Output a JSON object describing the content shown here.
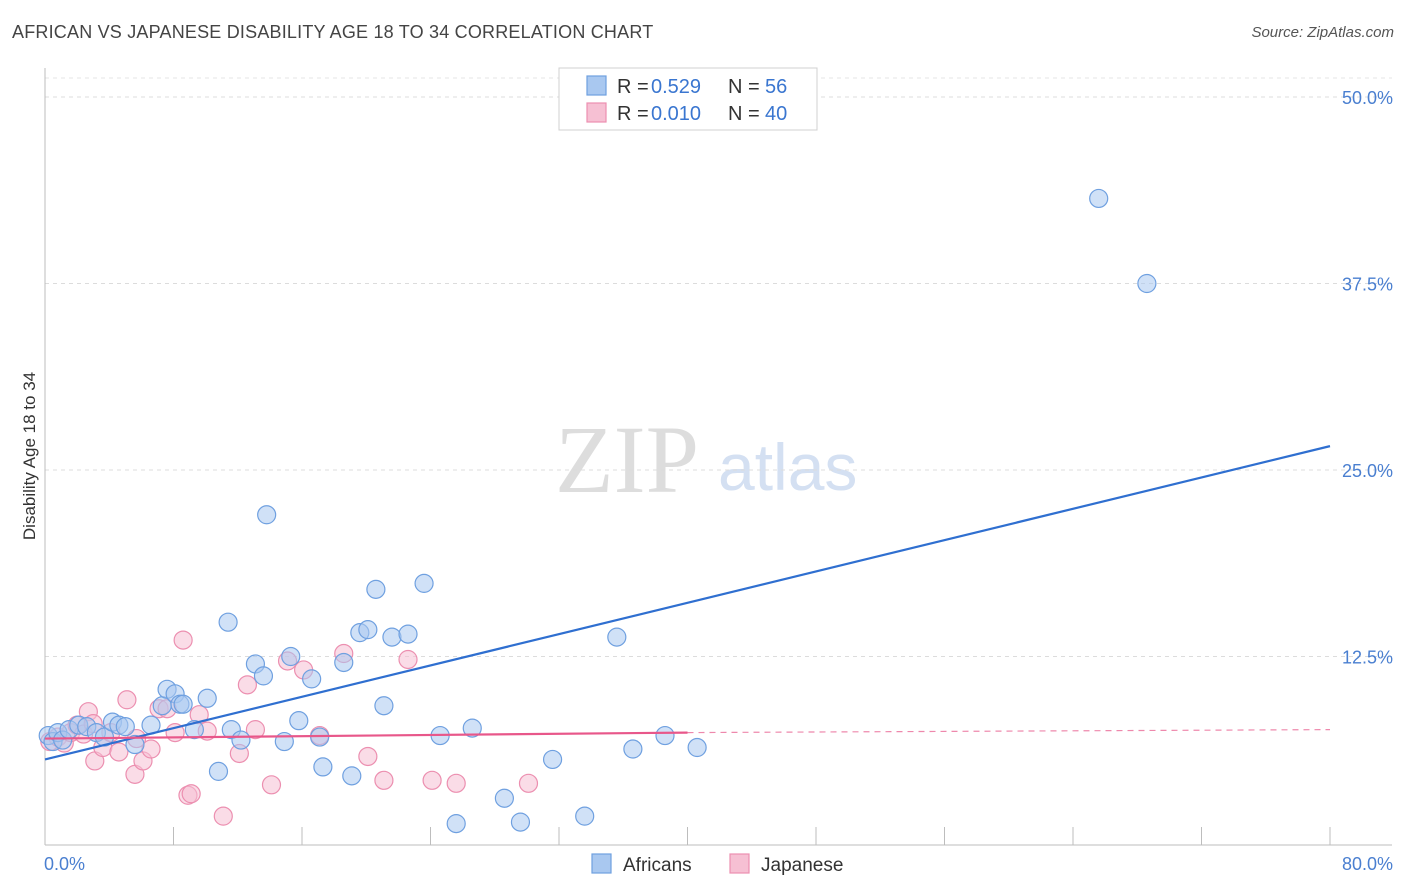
{
  "title": "AFRICAN VS JAPANESE DISABILITY AGE 18 TO 34 CORRELATION CHART",
  "source": "Source: ZipAtlas.com",
  "watermark": {
    "zip": "ZIP",
    "atlas": "atlas"
  },
  "colors": {
    "africans": "#6fa0e0",
    "africans_fill": "#a9c8f0",
    "africans_line": "#2f6fd0",
    "japanese": "#ec8fb0",
    "japanese_fill": "#f6c0d3",
    "japanese_line": "#e8578a",
    "tick_text": "#4a7fd0"
  },
  "legend": {
    "rows": [
      {
        "r_label": "R =",
        "r_value": "0.529",
        "n_label": "N =",
        "n_value": "56"
      },
      {
        "r_label": "R =",
        "r_value": "0.010",
        "n_label": "N =",
        "n_value": "40"
      }
    ]
  },
  "bottom_legend": [
    "Africans",
    "Japanese"
  ],
  "chart_data": {
    "type": "scatter",
    "xlabel": "",
    "ylabel": "Disability Age 18 to 34",
    "xlim": [
      0,
      80
    ],
    "ylim": [
      0,
      51
    ],
    "x_tick_labels": [
      "0.0%",
      "80.0%"
    ],
    "y_ticks": [
      12.5,
      25.0,
      37.5,
      50.0
    ],
    "y_tick_labels": [
      "12.5%",
      "25.0%",
      "37.5%",
      "50.0%"
    ],
    "grid": true,
    "series": [
      {
        "name": "Africans",
        "trend": {
          "x": [
            0,
            80
          ],
          "y": [
            5.6,
            26.6
          ]
        },
        "points": [
          [
            0.2,
            7.2
          ],
          [
            0.5,
            6.8
          ],
          [
            0.8,
            7.4
          ],
          [
            1.1,
            6.9
          ],
          [
            1.5,
            7.6
          ],
          [
            2.1,
            7.9
          ],
          [
            2.6,
            7.8
          ],
          [
            3.2,
            7.4
          ],
          [
            3.7,
            7.1
          ],
          [
            4.2,
            8.1
          ],
          [
            4.6,
            7.9
          ],
          [
            5.0,
            7.8
          ],
          [
            5.6,
            6.6
          ],
          [
            6.6,
            7.9
          ],
          [
            7.3,
            9.2
          ],
          [
            7.6,
            10.3
          ],
          [
            8.1,
            10.0
          ],
          [
            8.4,
            9.3
          ],
          [
            8.6,
            9.3
          ],
          [
            9.3,
            7.6
          ],
          [
            10.1,
            9.7
          ],
          [
            10.8,
            4.8
          ],
          [
            11.4,
            14.8
          ],
          [
            11.6,
            7.6
          ],
          [
            12.2,
            6.9
          ],
          [
            13.1,
            12.0
          ],
          [
            13.6,
            11.2
          ],
          [
            13.8,
            22.0
          ],
          [
            14.9,
            6.8
          ],
          [
            15.3,
            12.5
          ],
          [
            15.8,
            8.2
          ],
          [
            16.6,
            11.0
          ],
          [
            17.1,
            7.1
          ],
          [
            17.3,
            5.1
          ],
          [
            18.6,
            12.1
          ],
          [
            19.1,
            4.5
          ],
          [
            19.6,
            14.1
          ],
          [
            20.1,
            14.3
          ],
          [
            20.6,
            17.0
          ],
          [
            21.1,
            9.2
          ],
          [
            21.6,
            13.8
          ],
          [
            22.6,
            14.0
          ],
          [
            23.6,
            17.4
          ],
          [
            24.6,
            7.2
          ],
          [
            25.6,
            1.3
          ],
          [
            26.6,
            7.7
          ],
          [
            28.6,
            3.0
          ],
          [
            29.6,
            1.4
          ],
          [
            31.6,
            5.6
          ],
          [
            33.6,
            1.8
          ],
          [
            35.6,
            13.8
          ],
          [
            36.6,
            6.3
          ],
          [
            38.6,
            7.2
          ],
          [
            40.6,
            6.4
          ],
          [
            65.6,
            43.2
          ],
          [
            68.6,
            37.5
          ]
        ]
      },
      {
        "name": "Japanese",
        "trend": {
          "x": [
            0,
            40
          ],
          "y": [
            7.0,
            7.4
          ]
        },
        "trend_ext": {
          "x": [
            40,
            80
          ],
          "y": [
            7.4,
            7.6
          ]
        },
        "points": [
          [
            0.3,
            6.8
          ],
          [
            0.8,
            7.1
          ],
          [
            1.2,
            6.7
          ],
          [
            1.6,
            7.4
          ],
          [
            2.0,
            7.9
          ],
          [
            2.4,
            7.3
          ],
          [
            2.7,
            8.8
          ],
          [
            3.0,
            8.0
          ],
          [
            3.1,
            5.5
          ],
          [
            3.6,
            6.4
          ],
          [
            4.1,
            7.4
          ],
          [
            4.6,
            6.1
          ],
          [
            5.1,
            9.6
          ],
          [
            5.6,
            4.6
          ],
          [
            5.7,
            7.0
          ],
          [
            6.1,
            5.5
          ],
          [
            6.6,
            6.3
          ],
          [
            7.1,
            9.0
          ],
          [
            7.6,
            9.0
          ],
          [
            8.1,
            7.4
          ],
          [
            8.6,
            13.6
          ],
          [
            8.9,
            3.2
          ],
          [
            9.1,
            3.3
          ],
          [
            9.6,
            8.6
          ],
          [
            10.1,
            7.5
          ],
          [
            11.1,
            1.8
          ],
          [
            12.1,
            6.0
          ],
          [
            12.6,
            10.6
          ],
          [
            13.1,
            7.6
          ],
          [
            14.1,
            3.9
          ],
          [
            15.1,
            12.2
          ],
          [
            16.1,
            11.6
          ],
          [
            17.1,
            7.2
          ],
          [
            18.6,
            12.7
          ],
          [
            20.1,
            5.8
          ],
          [
            21.1,
            4.2
          ],
          [
            22.6,
            12.3
          ],
          [
            24.1,
            4.2
          ],
          [
            25.6,
            4.0
          ],
          [
            30.1,
            4.0
          ]
        ]
      }
    ]
  }
}
